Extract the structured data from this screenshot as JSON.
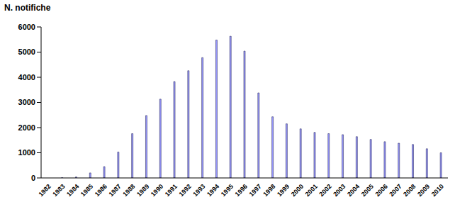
{
  "chart_data": {
    "type": "bar",
    "y_label": "N. notifiche",
    "categories": [
      "1982",
      "1983",
      "1984",
      "1985",
      "1986",
      "1987",
      "1988",
      "1989",
      "1990",
      "1991",
      "1992",
      "1993",
      "1994",
      "1995",
      "1996",
      "1997",
      "1998",
      "1999",
      "2000",
      "2001",
      "2002",
      "2003",
      "2004",
      "2005",
      "2006",
      "2007",
      "2008",
      "2009",
      "2010"
    ],
    "values": [
      0,
      10,
      40,
      200,
      450,
      1030,
      1760,
      2480,
      3130,
      3830,
      4260,
      4780,
      5480,
      5630,
      5040,
      3380,
      2430,
      2150,
      1950,
      1810,
      1760,
      1720,
      1640,
      1530,
      1440,
      1380,
      1330,
      1160,
      1000
    ],
    "color": "#9999ff",
    "ylim": [
      0,
      6000
    ],
    "yticks": [
      0,
      1000,
      2000,
      3000,
      4000,
      5000,
      6000
    ],
    "grid": false
  }
}
